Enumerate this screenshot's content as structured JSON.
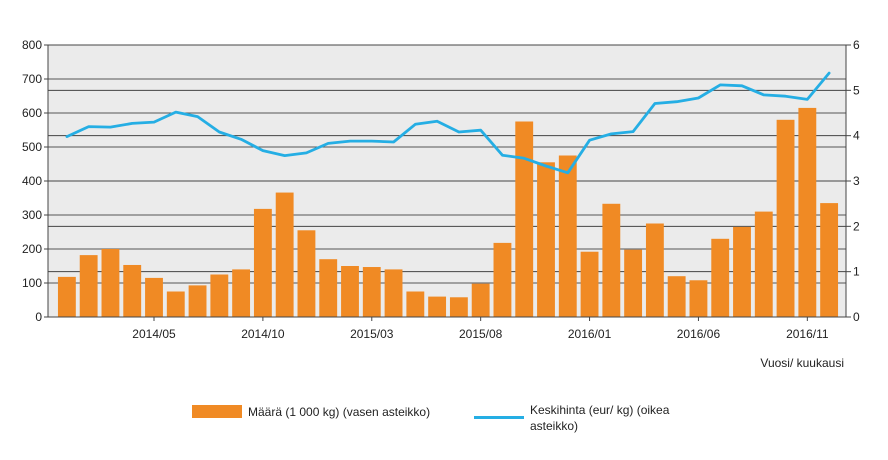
{
  "chart_data": {
    "type": "bar",
    "categories": [
      "2014/01",
      "2014/02",
      "2014/03",
      "2014/04",
      "2014/05",
      "2014/06",
      "2014/07",
      "2014/08",
      "2014/09",
      "2014/10",
      "2014/11",
      "2014/12",
      "2015/01",
      "2015/02",
      "2015/03",
      "2015/04",
      "2015/05",
      "2015/06",
      "2015/07",
      "2015/08",
      "2015/09",
      "2015/10",
      "2015/11",
      "2015/12",
      "2016/01",
      "2016/02",
      "2016/03",
      "2016/04",
      "2016/05",
      "2016/06",
      "2016/07",
      "2016/08",
      "2016/09",
      "2016/10",
      "2016/11",
      "2016/12"
    ],
    "x_tick_labels": [
      "2014/05",
      "2014/10",
      "2015/03",
      "2015/08",
      "2016/01",
      "2016/06",
      "2016/11"
    ],
    "x_tick_indices": [
      4,
      9,
      14,
      19,
      24,
      29,
      34
    ],
    "series": [
      {
        "name": "Määrä (1 000 kg) (vasen asteikko)",
        "type": "bar",
        "axis": "left",
        "color": "#f08a24",
        "values": [
          118,
          182,
          200,
          153,
          115,
          75,
          93,
          125,
          140,
          318,
          366,
          255,
          170,
          150,
          147,
          140,
          75,
          60,
          58,
          98,
          218,
          575,
          455,
          475,
          192,
          333,
          198,
          275,
          120,
          108,
          230,
          265,
          310,
          580,
          615,
          335
        ]
      },
      {
        "name": "Keskihinta (eur/ kg) (oikea asteikko)",
        "type": "line",
        "axis": "right",
        "color": "#25aee4",
        "values": [
          3.98,
          4.2,
          4.19,
          4.27,
          4.3,
          4.52,
          4.42,
          4.08,
          3.92,
          3.67,
          3.56,
          3.62,
          3.83,
          3.88,
          3.88,
          3.86,
          4.25,
          4.32,
          4.08,
          4.12,
          3.57,
          3.5,
          3.33,
          3.18,
          3.9,
          4.04,
          4.09,
          4.71,
          4.75,
          4.83,
          5.12,
          5.1,
          4.9,
          4.87,
          4.8,
          5.38
        ]
      }
    ],
    "left_axis": {
      "ylim": [
        0,
        800
      ],
      "ticks": [
        "0",
        "100",
        "200",
        "300",
        "400",
        "500",
        "600",
        "700",
        "800"
      ]
    },
    "right_axis": {
      "ylim": [
        0,
        6
      ],
      "ticks": [
        "0",
        "1",
        "2",
        "3",
        "4",
        "5",
        "6"
      ]
    },
    "xlabel": "Vuosi/ kuukausi",
    "grid": true,
    "legend_placement": "bottom-center",
    "plot_background": "#ebebeb"
  }
}
